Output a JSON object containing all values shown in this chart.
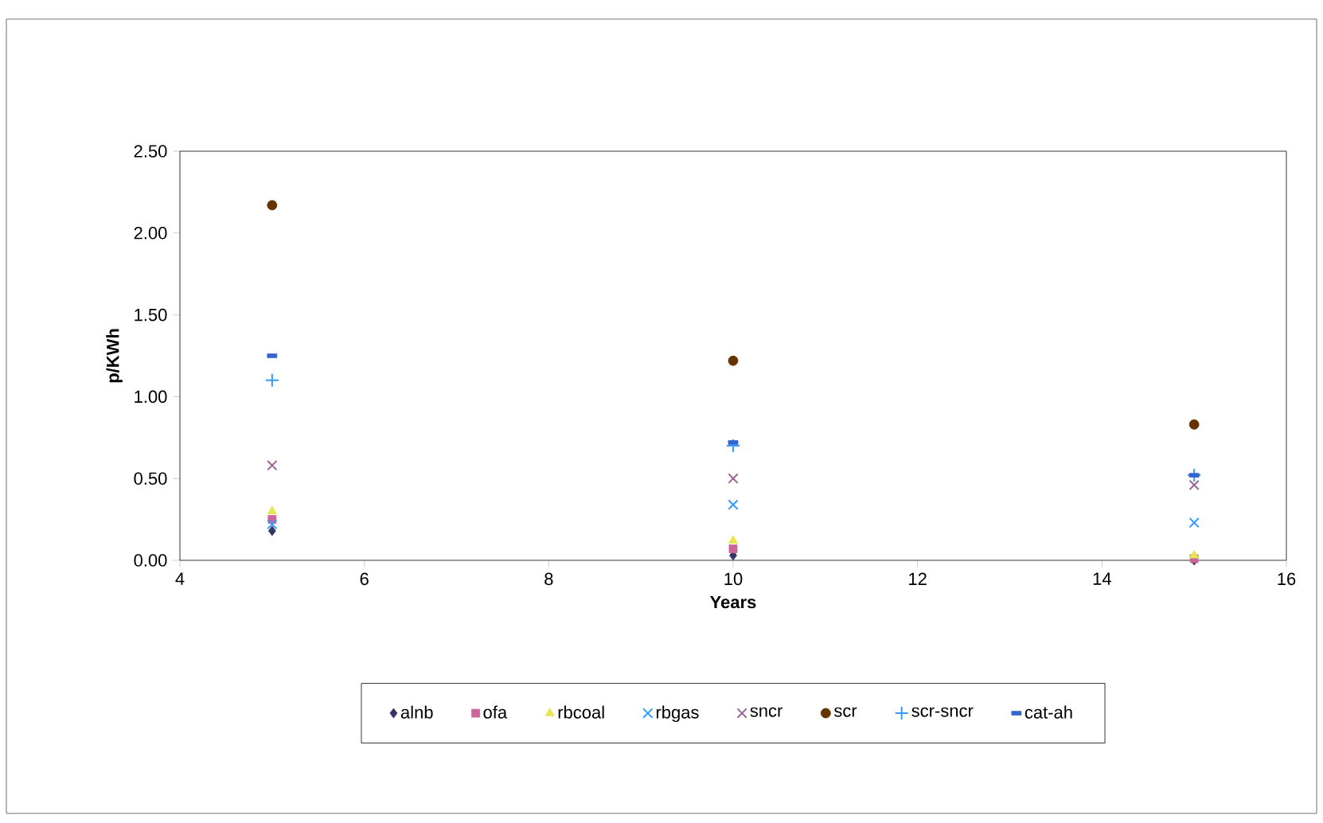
{
  "chart_data": {
    "type": "scatter",
    "xlabel": "Years",
    "ylabel": "p/KWh",
    "x": [
      5,
      10,
      15
    ],
    "series": [
      {
        "name": "alnb",
        "color": "#333366",
        "marker": "diamond",
        "values": [
          0.18,
          0.03,
          0.0
        ]
      },
      {
        "name": "ofa",
        "color": "#cc6699",
        "marker": "square",
        "values": [
          0.25,
          0.07,
          0.01
        ]
      },
      {
        "name": "rbcoal",
        "color": "#e6e64d",
        "marker": "triangle",
        "values": [
          0.3,
          0.12,
          0.03
        ]
      },
      {
        "name": "rbgas",
        "color": "#3399ff",
        "marker": "cross",
        "values": [
          0.22,
          0.34,
          0.23
        ]
      },
      {
        "name": "sncr",
        "color": "#996699",
        "marker": "cross",
        "values": [
          0.58,
          0.5,
          0.46
        ]
      },
      {
        "name": "scr",
        "color": "#663300",
        "marker": "circle",
        "values": [
          2.17,
          1.22,
          0.83
        ]
      },
      {
        "name": "scr-sncr",
        "color": "#3399ff",
        "marker": "plus",
        "values": [
          1.1,
          0.7,
          0.52
        ]
      },
      {
        "name": "cat-ah",
        "color": "#3366cc",
        "values": [
          1.25,
          0.72,
          0.52
        ]
      }
    ],
    "xlim": [
      4,
      16
    ],
    "xticks": [
      4,
      6,
      8,
      10,
      12,
      14,
      16
    ],
    "ylim": [
      0,
      2.5
    ],
    "yticks": [
      {
        "value": 0,
        "label": "0.00"
      },
      {
        "value": 0.5,
        "label": "0.50"
      },
      {
        "value": 1,
        "label": "1.00"
      },
      {
        "value": 1.5,
        "label": "1.50"
      },
      {
        "value": 2,
        "label": "2.00"
      },
      {
        "value": 2.5,
        "label": "2.50"
      }
    ],
    "grid": false,
    "legend": "bottom"
  }
}
